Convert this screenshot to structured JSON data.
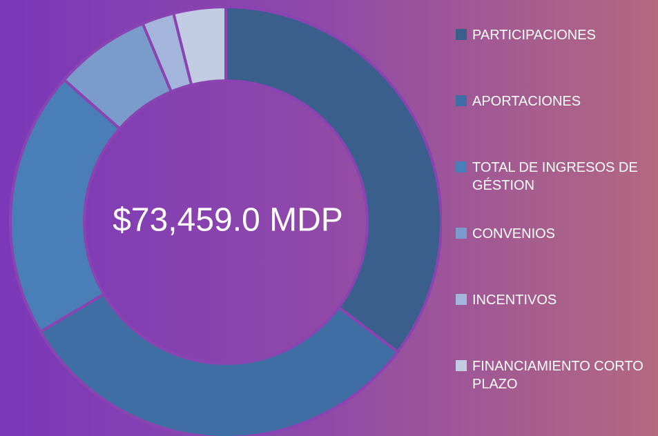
{
  "chart_data": {
    "type": "donut",
    "center_label": "$73,459.0 MDP",
    "categories": [
      "PARTICIPACIONES",
      "APORTACIONES",
      "TOTAL DE INGRESOS DE GÉSTION",
      "CONVENIOS",
      "INCENTIVOS",
      "FINANCIAMIENTO CORTO PLAZO"
    ],
    "values": [
      35.3,
      31.2,
      20.0,
      7.2,
      2.4,
      3.9
    ],
    "colors": [
      "#3b5f8c",
      "#3f6ea4",
      "#4a7eb8",
      "#7a9bcb",
      "#a3b5da",
      "#c2cde4"
    ],
    "legend": "right"
  }
}
